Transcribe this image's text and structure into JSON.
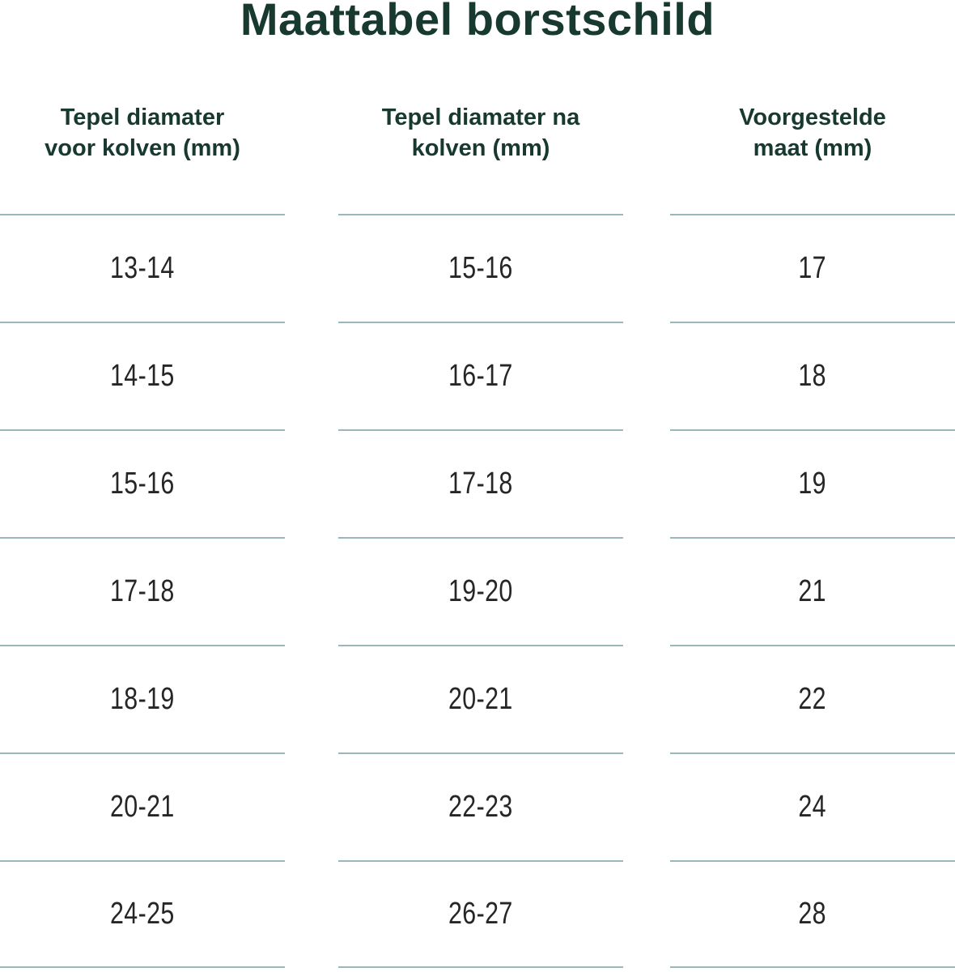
{
  "title": "Maattabel borstschild",
  "colors": {
    "heading_green": "#17392f",
    "divider_teal": "#9ab8b7",
    "cell_text": "#262626",
    "background": "#ffffff"
  },
  "chart_data": {
    "type": "table",
    "title": "Maattabel borstschild",
    "columns": [
      {
        "header": [
          "Tepel diamater",
          "voor kolven (mm)"
        ]
      },
      {
        "header": [
          "Tepel diamater na",
          "kolven (mm)"
        ]
      },
      {
        "header": [
          "Voorgestelde",
          "maat (mm)"
        ]
      }
    ],
    "rows": [
      [
        "13-14",
        "15-16",
        "17"
      ],
      [
        "14-15",
        "16-17",
        "18"
      ],
      [
        "15-16",
        "17-18",
        "19"
      ],
      [
        "17-18",
        "19-20",
        "21"
      ],
      [
        "18-19",
        "20-21",
        "22"
      ],
      [
        "20-21",
        "22-23",
        "24"
      ],
      [
        "24-25",
        "26-27",
        "28"
      ]
    ]
  }
}
